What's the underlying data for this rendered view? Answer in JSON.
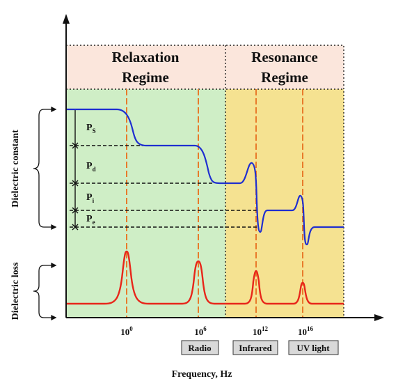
{
  "regimes": {
    "relaxation": [
      "Relaxation",
      "Regime"
    ],
    "resonance": [
      "Resonance",
      "Regime"
    ]
  },
  "axes": {
    "x_label": "Frequency, Hz",
    "y_label_top": "Dielectric constant",
    "y_label_bottom": "Dielectric loss"
  },
  "ticks": [
    {
      "base": "10",
      "exp": "0"
    },
    {
      "base": "10",
      "exp": "6"
    },
    {
      "base": "10",
      "exp": "12"
    },
    {
      "base": "10",
      "exp": "16"
    }
  ],
  "bands": [
    "Radio",
    "Infrared",
    "UV light"
  ],
  "polarizations": [
    {
      "main": "P",
      "sub": "S"
    },
    {
      "main": "P",
      "sub": "d"
    },
    {
      "main": "P",
      "sub": "i"
    },
    {
      "main": "P",
      "sub": "e"
    }
  ],
  "colors": {
    "relaxation_header": "#fbe6dc",
    "relaxation_fill": "#cfeec6",
    "resonance_fill": "#f5e291",
    "permittivity_curve": "#1f2fd0",
    "loss_curve": "#e8261a",
    "marker_lines": "#e87a2a"
  }
}
